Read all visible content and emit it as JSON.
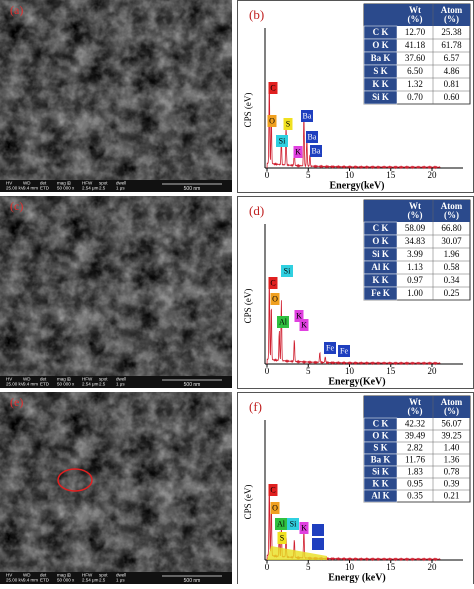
{
  "panels": [
    {
      "sem": {
        "label": "(a)",
        "info": [
          "HV",
          "WD",
          "det",
          "mag ⊞",
          "HFW",
          "spot",
          "dwell"
        ],
        "values": [
          "25.00 kV",
          "9.4 mm",
          "ETD",
          "50 000 x",
          "2.54 μm",
          "2.5",
          "1 μs"
        ],
        "scale": "500 nm"
      },
      "eds": {
        "label": "(b)",
        "y_label": "CPS (eV)",
        "x_label": "Energy(keV)",
        "xticks": [
          0,
          5,
          10,
          15,
          20
        ],
        "table": {
          "header": [
            "Wt\n(%)",
            "Atom\n(%)"
          ],
          "rows": [
            [
              "C K",
              "12.70",
              "25.38"
            ],
            [
              "O K",
              "41.18",
              "61.78"
            ],
            [
              "Ba K",
              "37.60",
              "6.57"
            ],
            [
              "S K",
              "6.50",
              "4.86"
            ],
            [
              "K K",
              "1.32",
              "0.81"
            ],
            [
              "Si K",
              "0.70",
              "0.60"
            ]
          ]
        },
        "peaks": [
          {
            "text": "C",
            "color": "#e02020"
          },
          {
            "text": "O",
            "color": "#f0a020"
          },
          {
            "text": "S",
            "color": "#f0e020"
          },
          {
            "text": "Ba",
            "color": "#1f3fbf"
          },
          {
            "text": "Si",
            "color": "#30d0e0"
          },
          {
            "text": "Ba",
            "color": "#1f3fbf"
          },
          {
            "text": "K",
            "color": "#e040e0"
          },
          {
            "text": "Ba",
            "color": "#1f3fbf"
          }
        ]
      }
    },
    {
      "sem": {
        "label": "(c)",
        "info": [
          "HV",
          "WD",
          "det",
          "mag ⊞",
          "HFW",
          "spot",
          "dwell"
        ],
        "values": [
          "25.00 kV",
          "9.4 mm",
          "ETD",
          "50 000 x",
          "2.54 μm",
          "2.5",
          "1 μs"
        ],
        "scale": "500 nm"
      },
      "eds": {
        "label": "(d)",
        "y_label": "CPS (eV)",
        "x_label": "Energy(KeV)",
        "xticks": [
          0,
          5,
          10,
          15,
          20
        ],
        "table": {
          "header": [
            "Wt\n(%)",
            "Atom\n(%)"
          ],
          "rows": [
            [
              "C K",
              "58.09",
              "66.80"
            ],
            [
              "O K",
              "34.83",
              "30.07"
            ],
            [
              "Si K",
              "3.99",
              "1.96"
            ],
            [
              "Al K",
              "1.13",
              "0.58"
            ],
            [
              "K K",
              "0.97",
              "0.34"
            ],
            [
              "Fe K",
              "1.00",
              "0.25"
            ]
          ]
        },
        "peaks": [
          {
            "text": "C",
            "color": "#e02020"
          },
          {
            "text": "O",
            "color": "#f0a020"
          },
          {
            "text": "Si",
            "color": "#30d0e0"
          },
          {
            "text": "Al",
            "color": "#30c040"
          },
          {
            "text": "K",
            "color": "#e040e0"
          },
          {
            "text": "K",
            "color": "#e040e0"
          },
          {
            "text": "Fe",
            "color": "#1f3fbf"
          },
          {
            "text": "Fe",
            "color": "#1f3fbf"
          }
        ]
      }
    },
    {
      "sem": {
        "label": "(e)",
        "info": [
          "HV",
          "WD",
          "det",
          "mag ⊞",
          "HFW",
          "spot",
          "dwell"
        ],
        "values": [
          "25.00 kV",
          "9.4 mm",
          "ETD",
          "50 000 x",
          "2.54 μm",
          "2.5",
          "1 μs"
        ],
        "scale": "500 nm"
      },
      "eds": {
        "label": "(f)",
        "y_label": "CPS (eV)",
        "x_label": "Energy (keV)",
        "xticks": [
          0,
          5,
          10,
          15,
          20
        ],
        "table": {
          "header": [
            "Wt\n(%)",
            "Atom\n(%)"
          ],
          "rows": [
            [
              "C K",
              "42.32",
              "56.07"
            ],
            [
              "O K",
              "39.49",
              "39.25"
            ],
            [
              "S K",
              "2.82",
              "1.40"
            ],
            [
              "Ba K",
              "11.76",
              "1.36"
            ],
            [
              "Si K",
              "1.83",
              "0.78"
            ],
            [
              "K K",
              "0.95",
              "0.39"
            ],
            [
              "Al K",
              "0.35",
              "0.21"
            ]
          ]
        },
        "peaks": [
          {
            "text": "C",
            "color": "#e02020"
          },
          {
            "text": "O",
            "color": "#f0a020"
          },
          {
            "text": "Al",
            "color": "#30c040"
          },
          {
            "text": "Si",
            "color": "#30d0e0"
          },
          {
            "text": "S",
            "color": "#f0e020"
          },
          {
            "text": "K",
            "color": "#e040e0"
          }
        ]
      }
    }
  ]
}
